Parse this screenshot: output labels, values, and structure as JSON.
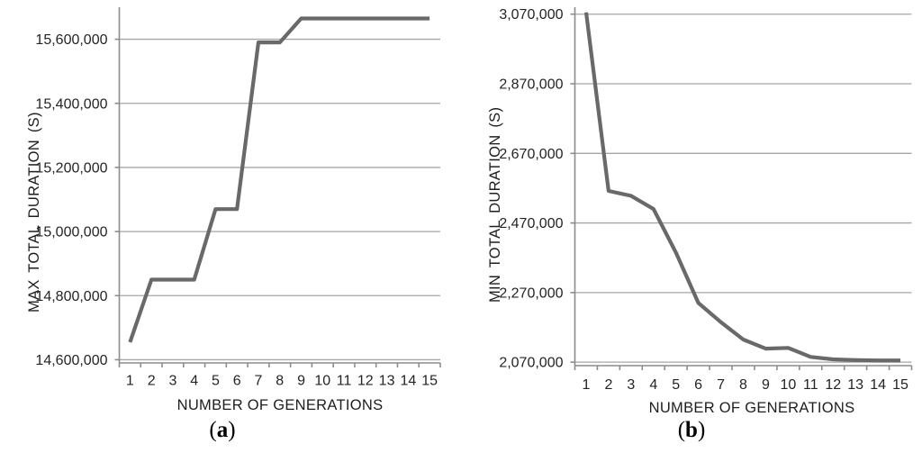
{
  "style": {
    "background": "#ffffff",
    "line_color": "#696969",
    "grid_color": "#a6a6a6",
    "axis_color": "#8c8c8c",
    "text_color": "#242424"
  },
  "chart_data": [
    {
      "type": "line",
      "title": "",
      "caption": {
        "open": "(",
        "letter": "a",
        "close": ")"
      },
      "xlabel": "NUMBER OF GENERATIONS",
      "ylabel": "MAX TOTAL DURATION (S)",
      "categories": [
        "1",
        "2",
        "3",
        "4",
        "5",
        "6",
        "7",
        "8",
        "9",
        "10",
        "11",
        "12",
        "13",
        "14",
        "15"
      ],
      "x": [
        1,
        2,
        3,
        4,
        5,
        6,
        7,
        8,
        9,
        10,
        11,
        12,
        13,
        14,
        15
      ],
      "values": [
        14655000,
        14850000,
        14850000,
        14850000,
        15070000,
        15070000,
        15590000,
        15590000,
        15665000,
        15665000,
        15665000,
        15665000,
        15665000,
        15665000,
        15665000
      ],
      "ylim": [
        14600000,
        15700000
      ],
      "ytick_values": [
        14600000,
        14800000,
        15000000,
        15200000,
        15400000,
        15600000
      ],
      "ytick_labels": [
        "14,600,000",
        "14,800,000",
        "15,000,000",
        "15,200,000",
        "15,400,000",
        "15,600,000"
      ],
      "grid": true,
      "legend": "none"
    },
    {
      "type": "line",
      "title": "",
      "caption": {
        "open": "(",
        "letter": "b",
        "close": ")"
      },
      "xlabel": "NUMBER OF GENERATIONS",
      "ylabel": "MIN TOTAL DURATION (S)",
      "categories": [
        "1",
        "2",
        "3",
        "4",
        "5",
        "6",
        "7",
        "8",
        "9",
        "10",
        "11",
        "12",
        "13",
        "14",
        "15"
      ],
      "x": [
        1,
        2,
        3,
        4,
        5,
        6,
        7,
        8,
        9,
        10,
        11,
        12,
        13,
        14,
        15
      ],
      "values": [
        3075000,
        2562000,
        2548000,
        2510000,
        2385000,
        2240000,
        2185000,
        2135000,
        2109000,
        2111000,
        2085000,
        2078000,
        2076000,
        2075000,
        2075000
      ],
      "ylim": [
        2070000,
        3090000
      ],
      "ytick_values": [
        2070000,
        2270000,
        2470000,
        2670000,
        2870000,
        3070000
      ],
      "ytick_labels": [
        "2,070,000",
        "2,270,000",
        "2,470,000",
        "2,670,000",
        "2,870,000",
        "3,070,000"
      ],
      "grid": true,
      "legend": "none"
    }
  ]
}
